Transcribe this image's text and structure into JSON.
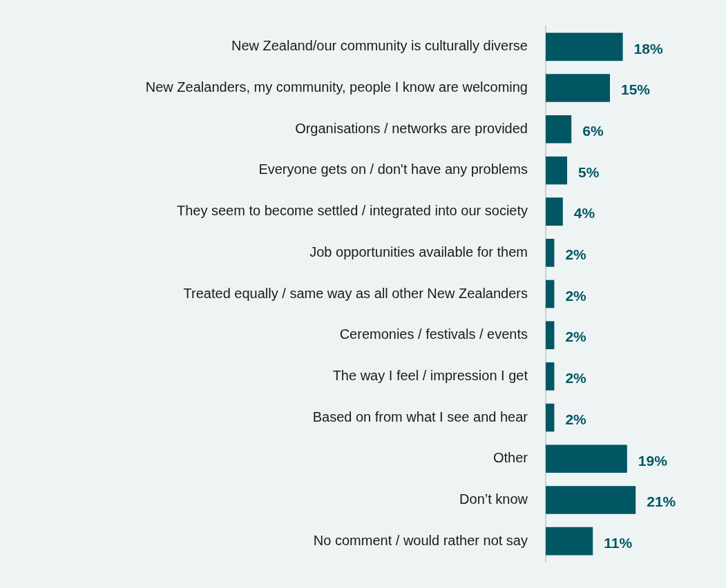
{
  "chart_data": {
    "type": "bar",
    "orientation": "horizontal",
    "categories": [
      "New Zealand/our community is culturally diverse",
      "New Zealanders, my community, people I know are welcoming",
      "Organisations / networks are provided",
      "Everyone gets on / don't have any problems",
      "They seem to become settled / integrated into our society",
      "Job opportunities available for them",
      "Treated equally / same way as all other New Zealanders",
      "Ceremonies / festivals / events",
      "The way I feel / impression I get",
      "Based on from what I see and hear",
      "Other",
      "Don’t know",
      "No comment / would rather not say"
    ],
    "values": [
      18,
      15,
      6,
      5,
      4,
      2,
      2,
      2,
      2,
      2,
      19,
      21,
      11
    ],
    "value_labels": [
      "18%",
      "15%",
      "6%",
      "5%",
      "4%",
      "2%",
      "2%",
      "2%",
      "2%",
      "2%",
      "19%",
      "21%",
      "11%"
    ],
    "color": "#005663",
    "legend": false
  }
}
